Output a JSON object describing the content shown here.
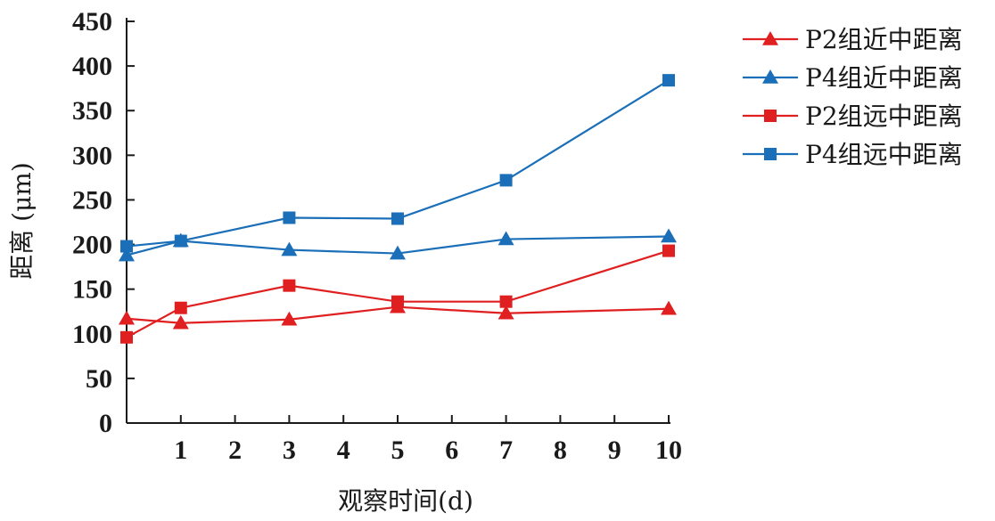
{
  "chart_data": {
    "type": "line",
    "x": [
      0,
      1,
      3,
      5,
      7,
      10
    ],
    "xticks": [
      "1",
      "2",
      "3",
      "4",
      "5",
      "6",
      "7",
      "8",
      "9",
      "10"
    ],
    "yticks": [
      "0",
      "50",
      "100",
      "150",
      "200",
      "250",
      "300",
      "350",
      "400",
      "450"
    ],
    "xlabel": "观察时间(d)",
    "ylabel": "距离 (μm)",
    "ylim": [
      0,
      450
    ],
    "grid": false,
    "legend_position": "top-right",
    "series": [
      {
        "name": "P2组近中距离",
        "marker": "triangle",
        "color": "#e02020",
        "values": [
          117,
          112,
          116,
          130,
          123,
          128
        ]
      },
      {
        "name": "P4组近中距离",
        "marker": "triangle",
        "color": "#1a6fb8",
        "values": [
          188,
          204,
          194,
          190,
          206,
          209
        ]
      },
      {
        "name": "P2组远中距离",
        "marker": "square",
        "color": "#e02020",
        "values": [
          96,
          129,
          154,
          136,
          136,
          193
        ]
      },
      {
        "name": "P4组远中距离",
        "marker": "square",
        "color": "#1a6fb8",
        "values": [
          198,
          204,
          230,
          229,
          272,
          384
        ]
      }
    ]
  }
}
